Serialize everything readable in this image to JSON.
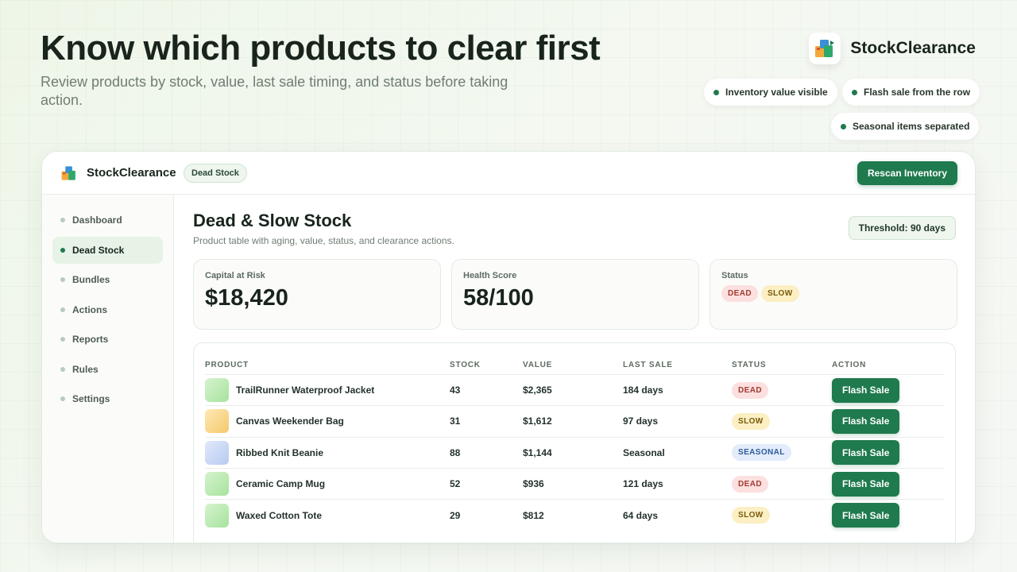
{
  "hero": {
    "title": "Know which products to clear first",
    "subtitle": "Review products by stock, value, last sale timing, and status before taking action."
  },
  "brand": {
    "name": "StockClearance",
    "logo_icon": "stacked-boxes-icon"
  },
  "features": [
    "Inventory value visible",
    "Flash sale from the row",
    "Seasonal items separated"
  ],
  "app": {
    "brand_name": "StockClearance",
    "section_badge": "Dead Stock",
    "rescan_label": "Rescan Inventory",
    "sidebar": {
      "items": [
        {
          "label": "Dashboard",
          "active": false
        },
        {
          "label": "Dead Stock",
          "active": true
        },
        {
          "label": "Bundles",
          "active": false
        },
        {
          "label": "Actions",
          "active": false
        },
        {
          "label": "Reports",
          "active": false
        },
        {
          "label": "Rules",
          "active": false
        },
        {
          "label": "Settings",
          "active": false
        }
      ]
    },
    "main": {
      "title": "Dead & Slow Stock",
      "subtitle": "Product table with aging, value, status, and clearance actions.",
      "threshold": "Threshold: 90 days",
      "cards": {
        "capital": {
          "label": "Capital at Risk",
          "value": "$18,420"
        },
        "health": {
          "label": "Health Score",
          "value": "58/100"
        },
        "status": {
          "label": "Status",
          "badges": [
            "DEAD",
            "SLOW"
          ]
        }
      },
      "table": {
        "headers": [
          "PRODUCT",
          "STOCK",
          "VALUE",
          "LAST SALE",
          "STATUS",
          "ACTION"
        ],
        "rows": [
          {
            "product": "TrailRunner Waterproof Jacket",
            "stock": "43",
            "value": "$2,365",
            "last_sale": "184 days",
            "status": "DEAD",
            "action": "Flash Sale"
          },
          {
            "product": "Canvas Weekender Bag",
            "stock": "31",
            "value": "$1,612",
            "last_sale": "97 days",
            "status": "SLOW",
            "action": "Flash Sale"
          },
          {
            "product": "Ribbed Knit Beanie",
            "stock": "88",
            "value": "$1,144",
            "last_sale": "Seasonal",
            "status": "SEASONAL",
            "action": "Flash Sale"
          },
          {
            "product": "Ceramic Camp Mug",
            "stock": "52",
            "value": "$936",
            "last_sale": "121 days",
            "status": "DEAD",
            "action": "Flash Sale"
          },
          {
            "product": "Waxed Cotton Tote",
            "stock": "29",
            "value": "$812",
            "last_sale": "64 days",
            "status": "SLOW",
            "action": "Flash Sale"
          }
        ]
      }
    }
  },
  "colors": {
    "accent": "#1f7a4d",
    "dead": "#a33a33",
    "slow": "#7a5a0b",
    "seasonal": "#2f5a9a"
  }
}
